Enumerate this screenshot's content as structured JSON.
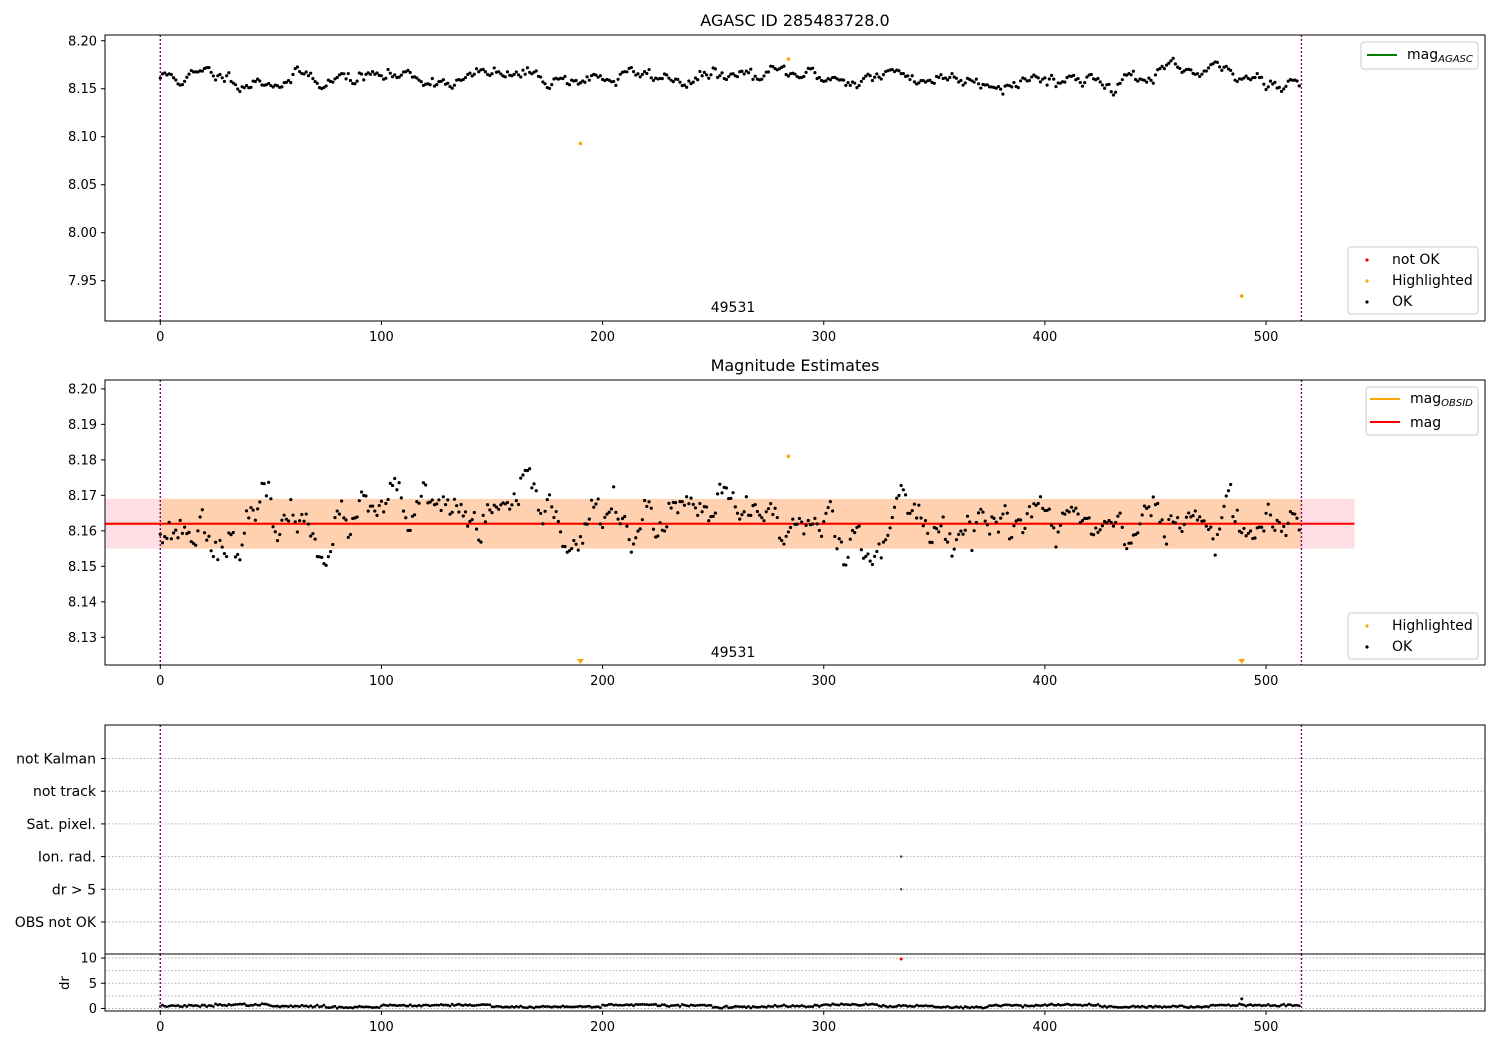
{
  "chart_data": [
    {
      "type": "scatter",
      "title": "AGASC ID 285483728.0",
      "xlabel": "",
      "ylabel": "",
      "xlim": [
        -25,
        599
      ],
      "ylim": [
        7.908,
        8.206
      ],
      "x_ticks": [
        0,
        100,
        200,
        300,
        400,
        500
      ],
      "y_ticks": [
        7.95,
        8.0,
        8.05,
        8.1,
        8.15,
        8.2
      ],
      "y_tick_labels": [
        "7.95",
        "8.00",
        "8.05",
        "8.10",
        "8.15",
        "8.20"
      ],
      "obsid_boundaries": [
        0,
        516
      ],
      "obsid_annotation": {
        "text": "49531",
        "x": 258
      },
      "ok_series": {
        "name": "OK",
        "color": "#000000",
        "n": 516,
        "baseline": 8.162,
        "scatter": 0.008
      },
      "highlighted_points": [
        {
          "x": 190,
          "y": 8.093
        },
        {
          "x": 284,
          "y": 8.181
        },
        {
          "x": 489,
          "y": 7.934
        }
      ],
      "lines_legend": {
        "placement": "top-right",
        "entries": [
          {
            "label": "mag",
            "subscript": "AGASC",
            "color": "#008000"
          }
        ]
      },
      "points_legend": {
        "placement": "bottom-right",
        "entries": [
          {
            "label": "not OK",
            "color": "#ff0000"
          },
          {
            "label": "Highlighted",
            "color": "#ffa500"
          },
          {
            "label": "OK",
            "color": "#000000"
          }
        ]
      }
    },
    {
      "type": "scatter",
      "title": "Magnitude Estimates",
      "xlabel": "",
      "ylabel": "",
      "xlim": [
        -25,
        599
      ],
      "ylim": [
        8.1222,
        8.2025
      ],
      "x_ticks": [
        0,
        100,
        200,
        300,
        400,
        500
      ],
      "y_ticks": [
        8.13,
        8.14,
        8.15,
        8.16,
        8.17,
        8.18,
        8.19,
        8.2
      ],
      "y_tick_labels": [
        "8.13",
        "8.14",
        "8.15",
        "8.16",
        "8.17",
        "8.18",
        "8.19",
        "8.20"
      ],
      "obsid_boundaries": [
        0,
        516
      ],
      "obsid_annotation": {
        "text": "49531",
        "x": 258
      },
      "mag": 8.162,
      "mag_band": [
        8.155,
        8.169
      ],
      "band_x_range": [
        -25,
        540
      ],
      "ok_series": {
        "name": "OK",
        "color": "#000000",
        "n": 516,
        "baseline": 8.162,
        "scatter": 0.0065
      },
      "highlighted_points": [
        {
          "x": 284,
          "y": 8.181
        }
      ],
      "out_of_range_markers": [
        190,
        489
      ],
      "lines_legend": {
        "placement": "top-right",
        "entries": [
          {
            "label": "mag",
            "subscript": "OBSID",
            "color": "#ffa500"
          },
          {
            "label": "mag",
            "subscript": "",
            "color": "#ff0000"
          }
        ]
      },
      "points_legend": {
        "placement": "bottom-right",
        "entries": [
          {
            "label": "Highlighted",
            "color": "#ffa500"
          },
          {
            "label": "OK",
            "color": "#000000"
          }
        ]
      }
    },
    {
      "type": "scatter",
      "title": "",
      "xlabel": "",
      "ylabel": "",
      "xlim": [
        -25,
        599
      ],
      "x_ticks": [
        0,
        100,
        200,
        300,
        400,
        500
      ],
      "obsid_boundaries": [
        0,
        516
      ],
      "flag_rows": [
        "not Kalman",
        "not track",
        "Sat. pixel.",
        "Ion. rad.",
        "dr > 5",
        "OBS not OK"
      ],
      "flag_points": [
        {
          "row": "Ion. rad.",
          "x": 335
        },
        {
          "row": "dr > 5",
          "x": 335
        }
      ]
    },
    {
      "type": "scatter",
      "title": "",
      "xlabel": "",
      "ylabel": "dr",
      "xlim": [
        -25,
        599
      ],
      "ylim": [
        -0.5,
        10.8
      ],
      "x_ticks": [
        0,
        100,
        200,
        300,
        400,
        500
      ],
      "y_ticks": [
        0,
        5,
        10
      ],
      "y_tick_labels": [
        "0",
        "5",
        "10"
      ],
      "obsid_boundaries": [
        0,
        516
      ],
      "dr_series": {
        "n": 516,
        "baseline": 0.5,
        "scatter": 0.25,
        "color": "#000000"
      },
      "dr_outliers": [
        {
          "x": 335,
          "y": 9.8,
          "color": "#ff0000"
        },
        {
          "x": 489,
          "y": 1.9,
          "color": "#000000"
        }
      ]
    }
  ]
}
